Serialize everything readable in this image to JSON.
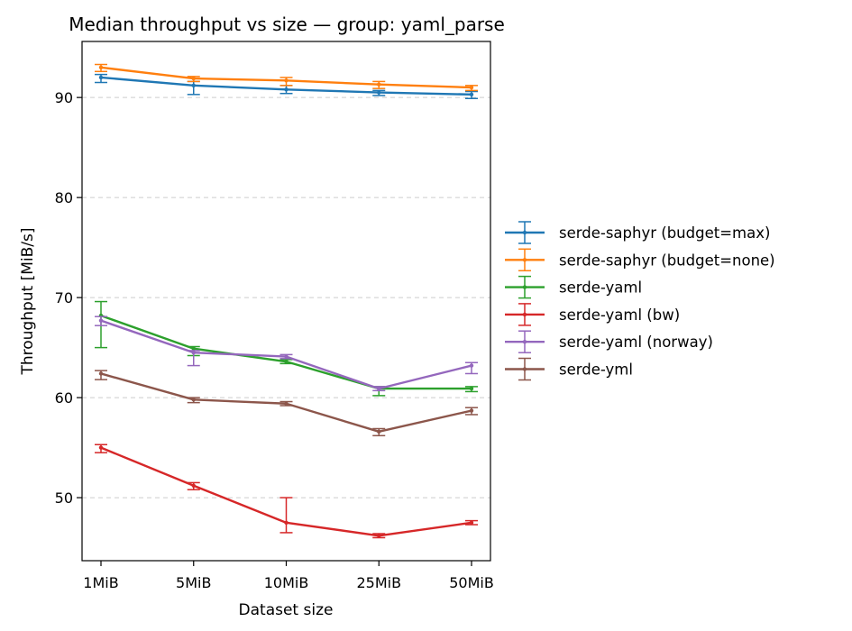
{
  "chart_data": {
    "type": "line",
    "title": "Median throughput vs size — group: yaml_parse",
    "xlabel": "Dataset size",
    "ylabel": "Throughput [MiB/s]",
    "categories": [
      "1MiB",
      "5MiB",
      "10MiB",
      "25MiB",
      "50MiB"
    ],
    "ylim": [
      43.7,
      95.6
    ],
    "yticks": [
      50,
      60,
      70,
      80,
      90
    ],
    "grid": "horizontal dashed",
    "legend_position": "right-outside",
    "series": [
      {
        "name": "serde-saphyr (budget=max)",
        "color": "#1f77b4",
        "values": [
          92.0,
          91.2,
          90.8,
          90.5,
          90.3
        ],
        "err_low": [
          91.5,
          90.3,
          90.4,
          90.2,
          89.9
        ],
        "err_high": [
          92.3,
          91.6,
          91.2,
          90.7,
          90.6
        ]
      },
      {
        "name": "serde-saphyr (budget=none)",
        "color": "#ff7f0e",
        "values": [
          93.0,
          91.9,
          91.7,
          91.3,
          91.0
        ],
        "err_low": [
          92.6,
          91.6,
          91.2,
          90.9,
          90.7
        ],
        "err_high": [
          93.3,
          92.1,
          92.0,
          91.6,
          91.2
        ]
      },
      {
        "name": "serde-yaml",
        "color": "#2ca02c",
        "values": [
          68.2,
          64.9,
          63.6,
          60.9,
          60.9
        ],
        "err_low": [
          65.0,
          64.2,
          63.4,
          60.2,
          60.6
        ],
        "err_high": [
          69.6,
          65.1,
          63.8,
          61.1,
          61.1
        ]
      },
      {
        "name": "serde-yaml (bw)",
        "color": "#d62728",
        "values": [
          55.0,
          51.2,
          47.5,
          46.2,
          47.5
        ],
        "err_low": [
          54.5,
          50.8,
          46.5,
          46.0,
          47.3
        ],
        "err_high": [
          55.3,
          51.5,
          50.0,
          46.4,
          47.7
        ]
      },
      {
        "name": "serde-yaml (norway)",
        "color": "#9467bd",
        "values": [
          67.7,
          64.5,
          64.1,
          60.9,
          63.2
        ],
        "err_low": [
          67.2,
          63.2,
          63.9,
          60.7,
          62.4
        ],
        "err_high": [
          68.1,
          64.7,
          64.3,
          61.1,
          63.5
        ]
      },
      {
        "name": "serde-yml",
        "color": "#8c564b",
        "values": [
          62.4,
          59.8,
          59.4,
          56.6,
          58.7
        ],
        "err_low": [
          61.8,
          59.5,
          59.2,
          56.2,
          58.3
        ],
        "err_high": [
          62.7,
          60.0,
          59.6,
          56.9,
          59.0
        ]
      }
    ]
  }
}
